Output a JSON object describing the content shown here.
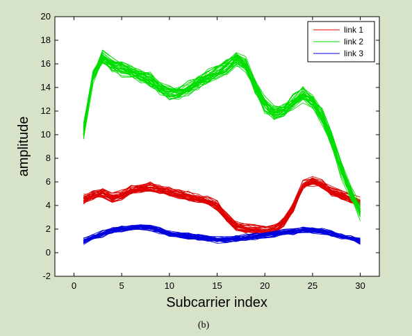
{
  "chart_data": {
    "type": "line",
    "title": "",
    "xlabel": "Subcarrier index",
    "ylabel": "amplitude",
    "caption": "(b)",
    "xlim": [
      -2,
      32
    ],
    "ylim": [
      -2,
      20
    ],
    "xticks": [
      0,
      5,
      10,
      15,
      20,
      25,
      30
    ],
    "yticks": [
      -2,
      0,
      2,
      4,
      6,
      8,
      10,
      12,
      14,
      16,
      18,
      20
    ],
    "grid": false,
    "legend_position": "top-right",
    "traces_per_link": 30,
    "x": [
      1,
      2,
      3,
      4,
      5,
      6,
      7,
      8,
      9,
      10,
      11,
      12,
      13,
      14,
      15,
      16,
      17,
      18,
      19,
      20,
      21,
      22,
      23,
      24,
      25,
      26,
      27,
      28,
      29,
      30
    ],
    "series": [
      {
        "name": "link 1",
        "color": "#dd0000",
        "values": [
          4.5,
          4.9,
          5.1,
          4.7,
          4.9,
          5.3,
          5.5,
          5.6,
          5.4,
          5.2,
          5.0,
          4.8,
          4.6,
          4.4,
          4.0,
          3.0,
          2.3,
          2.1,
          2.0,
          1.9,
          2.0,
          2.6,
          3.9,
          5.7,
          6.1,
          5.8,
          5.2,
          4.9,
          4.6,
          4.3
        ],
        "spread": 0.45
      },
      {
        "name": "link 2",
        "color": "#00dd00",
        "values": [
          10.2,
          15.0,
          16.5,
          16.0,
          15.6,
          15.3,
          15.0,
          14.6,
          14.0,
          13.5,
          13.5,
          13.9,
          14.4,
          14.9,
          15.3,
          15.7,
          16.4,
          15.9,
          14.0,
          12.5,
          11.8,
          12.0,
          12.8,
          13.4,
          12.8,
          11.5,
          9.5,
          7.0,
          5.2,
          3.4
        ],
        "spread": 0.7
      },
      {
        "name": "link 3",
        "color": "#0000dd",
        "values": [
          1.0,
          1.3,
          1.6,
          1.9,
          2.0,
          2.1,
          2.2,
          2.1,
          1.9,
          1.6,
          1.5,
          1.4,
          1.3,
          1.2,
          1.1,
          1.1,
          1.2,
          1.3,
          1.4,
          1.5,
          1.6,
          1.7,
          1.8,
          1.9,
          1.9,
          1.8,
          1.6,
          1.4,
          1.2,
          1.0
        ],
        "spread": 0.3
      }
    ]
  }
}
